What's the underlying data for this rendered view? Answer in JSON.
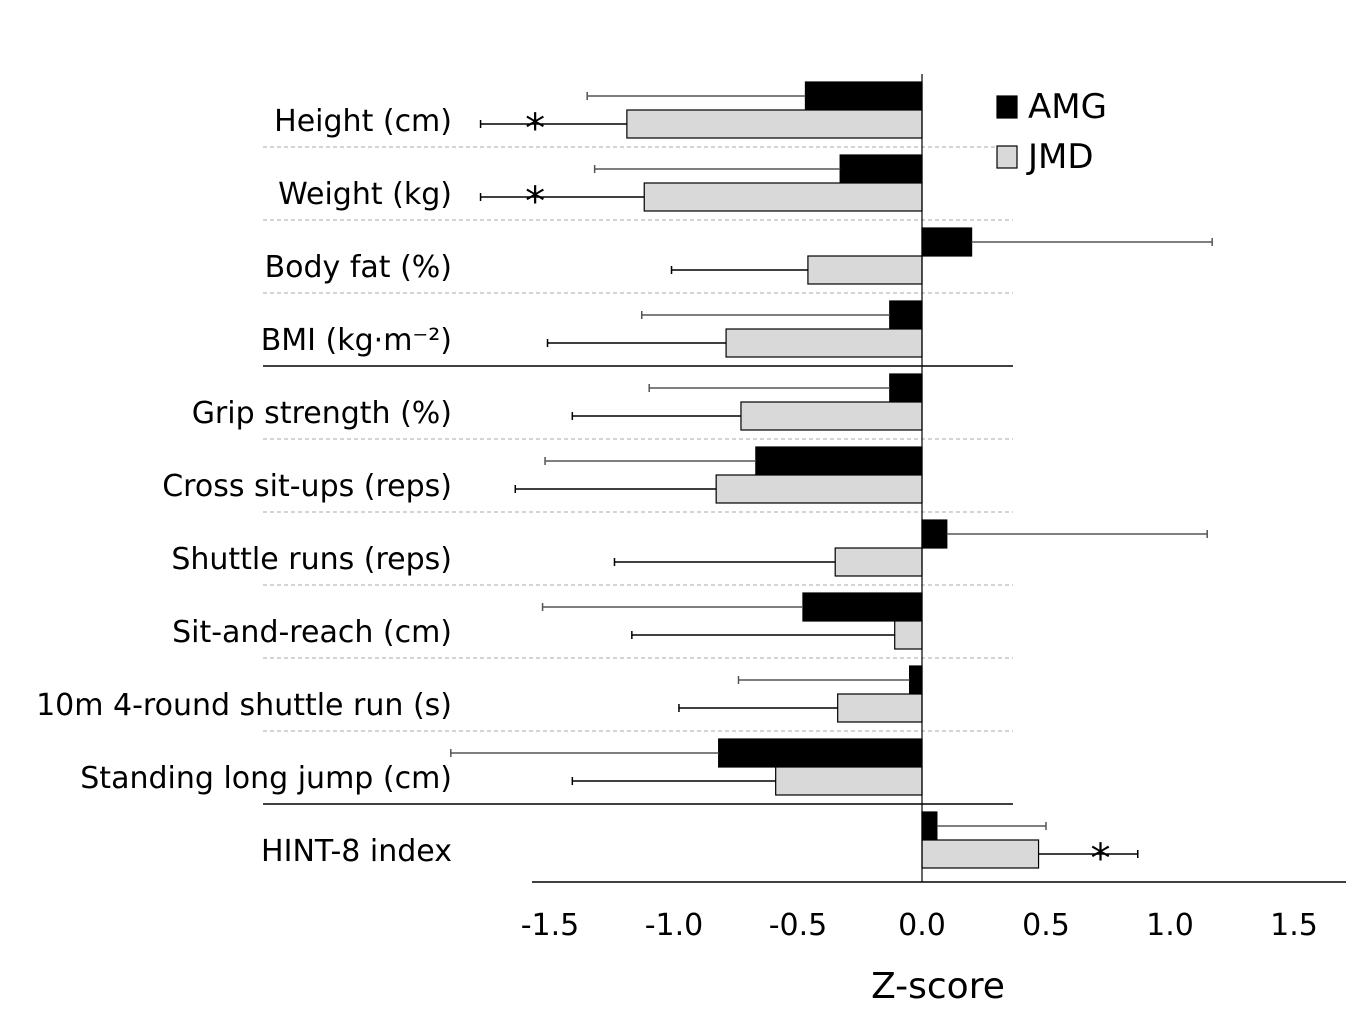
{
  "chart_data": {
    "type": "bar",
    "orientation": "horizontal",
    "title": "",
    "xlabel": "Z-score",
    "ylabel": "",
    "xlim": [
      -1.5,
      1.5
    ],
    "xticks": [
      "-1.5",
      "-1.0",
      "-0.5",
      "0.0",
      "0.5",
      "1.0",
      "1.5"
    ],
    "legend_position": "top-right",
    "categories": [
      "Height (cm)",
      "Weight (kg)",
      "Body fat (%)",
      "BMI (kg·m⁻²)",
      "Grip strength (%)",
      "Cross sit-ups (reps)",
      "Shuttle runs (reps)",
      "Sit-and-reach (cm)",
      "10m 4-round shuttle run (s)",
      "Standing long jump (cm)",
      "HINT-8 index"
    ],
    "series": [
      {
        "name": "AMG",
        "color": "#000000",
        "values": [
          -0.47,
          -0.33,
          0.2,
          -0.13,
          -0.13,
          -0.67,
          0.1,
          -0.48,
          -0.05,
          -0.82,
          0.06
        ],
        "error": [
          0.88,
          0.99,
          0.97,
          1.0,
          0.97,
          0.85,
          1.05,
          1.05,
          0.69,
          1.08,
          0.44
        ]
      },
      {
        "name": "JMD",
        "color": "#d9d9d9",
        "values": [
          -1.19,
          -1.12,
          -0.46,
          -0.79,
          -0.73,
          -0.83,
          -0.35,
          -0.11,
          -0.34,
          -0.59,
          0.47
        ],
        "error": [
          0.59,
          0.66,
          0.55,
          0.72,
          0.68,
          0.81,
          0.89,
          1.06,
          0.64,
          0.82,
          0.4
        ]
      }
    ],
    "annotations": [
      {
        "category": "Height (cm)",
        "series": "JMD",
        "text": "*",
        "x": -1.56
      },
      {
        "category": "Weight (kg)",
        "series": "JMD",
        "text": "*",
        "x": -1.56
      },
      {
        "category": "HINT-8 index",
        "series": "JMD",
        "text": "*",
        "x": 0.72
      }
    ]
  }
}
